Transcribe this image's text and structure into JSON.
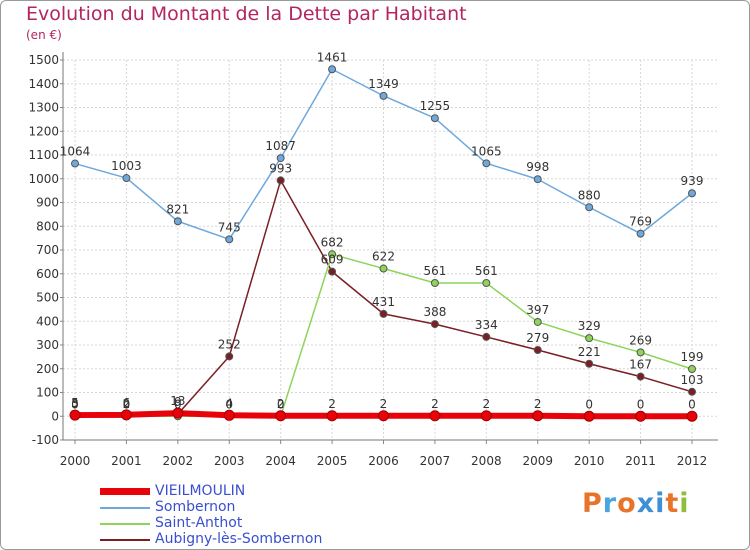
{
  "header": {
    "title": "Evolution du Montant de la Dette par Habitant",
    "subtitle": "(en €)"
  },
  "branding": {
    "logo_text": "Proxiti",
    "logo_colors": [
      "#e8742a",
      "#49a6e0",
      "#e8742a",
      "#3d8fd6",
      "#3d8fd6",
      "#e8742a",
      "#8fbf3a"
    ]
  },
  "chart_data": {
    "type": "line",
    "title": "Evolution du Montant de la Dette par Habitant",
    "subtitle": "(en €)",
    "xlabel": "",
    "ylabel": "",
    "x": [
      "2000",
      "2001",
      "2002",
      "2003",
      "2004",
      "2005",
      "2006",
      "2007",
      "2008",
      "2009",
      "2010",
      "2011",
      "2012"
    ],
    "ylim": [
      -100,
      1500
    ],
    "yticks": [
      "-100",
      "0",
      "100",
      "200",
      "300",
      "400",
      "500",
      "600",
      "700",
      "800",
      "900",
      "1000",
      "1100",
      "1200",
      "1300",
      "1400",
      "1500"
    ],
    "grid": true,
    "legend_position": "bottom-left",
    "series": [
      {
        "name": "VIEILMOULIN",
        "color": "#e8030b",
        "values": [
          5,
          6,
          13,
          4,
          2,
          2,
          2,
          2,
          2,
          2,
          0,
          0,
          0
        ],
        "labels": [
          "5",
          "6",
          "13",
          "4",
          "2",
          "2",
          "2",
          "2",
          "2",
          "2",
          "0",
          "0",
          "0"
        ]
      },
      {
        "name": "Sombernon",
        "color": "#6fa8dc",
        "values": [
          1064,
          1003,
          821,
          745,
          1087,
          1461,
          1349,
          1255,
          1065,
          998,
          880,
          769,
          939
        ],
        "labels": [
          "1064",
          "1003",
          "821",
          "745",
          "1087",
          "1461",
          "1349",
          "1255",
          "1065",
          "998",
          "880",
          "769",
          "939"
        ]
      },
      {
        "name": "Saint-Anthot",
        "color": "#8ed45a",
        "values": [
          0,
          0,
          0,
          0,
          0,
          682,
          622,
          561,
          561,
          397,
          329,
          269,
          199
        ],
        "labels": [
          "0",
          "0",
          "0",
          "0",
          "0",
          "682",
          "622",
          "561",
          "561",
          "397",
          "329",
          "269",
          "199"
        ]
      },
      {
        "name": "Aubigny-lès-Sombernon",
        "color": "#7a1f24",
        "values": [
          3,
          2,
          9,
          252,
          993,
          609,
          431,
          388,
          334,
          279,
          221,
          167,
          103
        ],
        "labels": [
          "3",
          "2",
          "9",
          "252",
          "993",
          "609",
          "431",
          "388",
          "334",
          "279",
          "221",
          "167",
          "103"
        ]
      }
    ]
  }
}
